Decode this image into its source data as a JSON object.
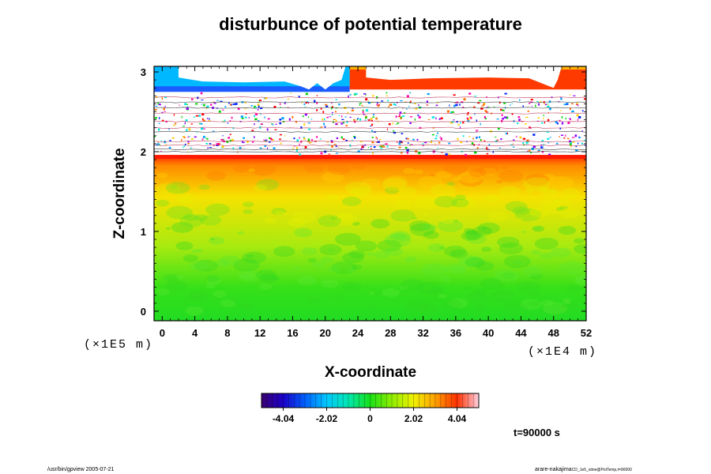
{
  "chart_data": {
    "type": "heatmap",
    "title": "disturbunce of potential temperature",
    "xlabel": "X-coordinate",
    "ylabel": "Z-coordinate",
    "x_unit_label": "(×1E4 m)",
    "y_unit_label": "(×1E5 m)",
    "x_ticks": [
      "0",
      "4",
      "8",
      "12",
      "16",
      "20",
      "24",
      "28",
      "32",
      "36",
      "40",
      "44",
      "48",
      "52"
    ],
    "y_ticks": [
      "0",
      "1",
      "2",
      "3"
    ],
    "xlim": [
      -1,
      52
    ],
    "ylim": [
      -0.12,
      3.07
    ],
    "colorbar": {
      "ticks": [
        "-4.04",
        "-2.02",
        "0",
        "2.02",
        "4.04"
      ],
      "range": [
        -5.05,
        5.05
      ]
    },
    "bands": [
      {
        "z_from": -0.12,
        "z_to": 0.85,
        "description": "near zero (green)",
        "value": 0.3
      },
      {
        "z_from": 0.85,
        "z_to": 1.6,
        "description": "light green / yellow-green",
        "value": 1.4
      },
      {
        "z_from": 1.6,
        "z_to": 1.95,
        "description": "yellow to orange, red near 1.95",
        "value": 3.0
      },
      {
        "z_from": 1.95,
        "z_to": 2.75,
        "description": "white with scattered multicolour noise and thin contour lines",
        "value": null
      },
      {
        "z_from": 2.75,
        "z_to": 3.07,
        "description": "negative (blue) on left, positive (red/orange) on right near top",
        "value": -3.0
      }
    ],
    "time_label": "t=90000 s"
  },
  "footer": {
    "left": "/usr/bin/gpview 2005-07-21",
    "right_main": "arare-nakajima",
    "right_small": "CD_1e5_stine@PotTemp,t=90000"
  }
}
